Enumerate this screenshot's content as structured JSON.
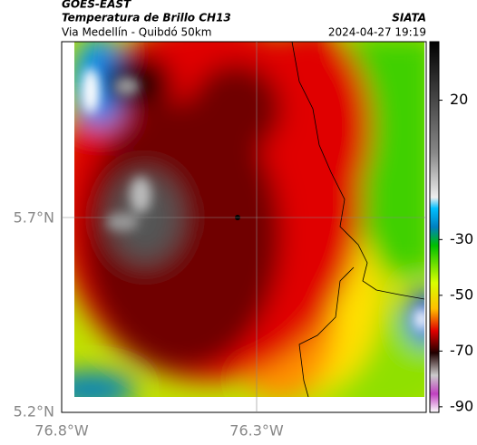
{
  "header": {
    "satellite": "GOES-EAST",
    "product": "Temperatura de Brillo CH13",
    "source": "SIATA",
    "location": "Via Medellín - Quibdó 50km",
    "datetime": "2024-04-27 19:19"
  },
  "map": {
    "lat_labels": [
      "5.7°N",
      "5.2°N"
    ],
    "lon_labels": [
      "76.8°W",
      "76.3°W"
    ]
  },
  "colorbar": {
    "range": [
      41,
      -92
    ],
    "ticks": [
      20,
      -30,
      -50,
      -70,
      -90
    ]
  }
}
